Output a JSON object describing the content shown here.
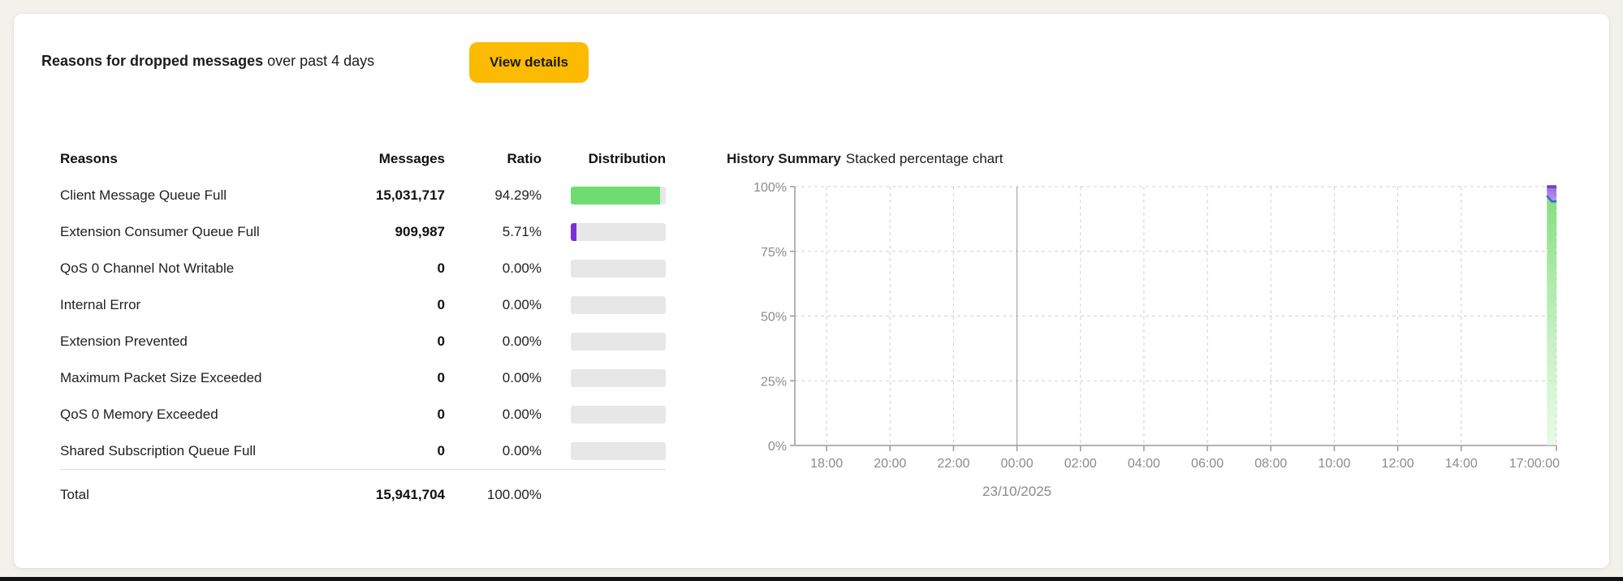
{
  "card": {
    "title_bold": "Reasons for dropped messages",
    "title_rest": " over past 4 days",
    "button_label": "View details",
    "button_color": "#fcba00"
  },
  "table": {
    "headers": {
      "reasons": "Reasons",
      "messages": "Messages",
      "ratio": "Ratio",
      "distribution": "Distribution"
    },
    "bar_track_color": "#e7e7e7",
    "rows": [
      {
        "reason": "Client Message Queue Full",
        "messages": "15,031,717",
        "ratio": "94.29%",
        "percent": 94.29,
        "bar_color": "#6fdc6f"
      },
      {
        "reason": "Extension Consumer Queue Full",
        "messages": "909,987",
        "ratio": "5.71%",
        "percent": 5.71,
        "bar_color": "#7b2fd9"
      },
      {
        "reason": "QoS 0 Channel Not Writable",
        "messages": "0",
        "ratio": "0.00%",
        "percent": 0,
        "bar_color": null
      },
      {
        "reason": "Internal Error",
        "messages": "0",
        "ratio": "0.00%",
        "percent": 0,
        "bar_color": null
      },
      {
        "reason": "Extension Prevented",
        "messages": "0",
        "ratio": "0.00%",
        "percent": 0,
        "bar_color": null
      },
      {
        "reason": "Maximum Packet Size Exceeded",
        "messages": "0",
        "ratio": "0.00%",
        "percent": 0,
        "bar_color": null
      },
      {
        "reason": "QoS 0 Memory Exceeded",
        "messages": "0",
        "ratio": "0.00%",
        "percent": 0,
        "bar_color": null
      },
      {
        "reason": "Shared Subscription Queue Full",
        "messages": "0",
        "ratio": "0.00%",
        "percent": 0,
        "bar_color": null
      }
    ],
    "total": {
      "label": "Total",
      "messages": "15,941,704",
      "ratio": "100.00%"
    }
  },
  "chart_data": {
    "type": "area",
    "variant": "stacked-percentage",
    "title": "History Summary",
    "subtitle": "Stacked percentage chart",
    "ylim": [
      0,
      100
    ],
    "y_ticks": [
      {
        "label": "0%",
        "percent": 0
      },
      {
        "label": "25%",
        "percent": 25
      },
      {
        "label": "50%",
        "percent": 50
      },
      {
        "label": "75%",
        "percent": 75
      },
      {
        "label": "100%",
        "percent": 100
      }
    ],
    "x_range_hours": [
      0,
      24
    ],
    "x_ticks": [
      {
        "label": "18:00",
        "t": 1
      },
      {
        "label": "20:00",
        "t": 3
      },
      {
        "label": "22:00",
        "t": 5
      },
      {
        "label": "00:00",
        "t": 7
      },
      {
        "label": "02:00",
        "t": 9
      },
      {
        "label": "04:00",
        "t": 11
      },
      {
        "label": "06:00",
        "t": 13
      },
      {
        "label": "08:00",
        "t": 15
      },
      {
        "label": "10:00",
        "t": 17
      },
      {
        "label": "12:00",
        "t": 19
      },
      {
        "label": "14:00",
        "t": 21
      },
      {
        "label": "17:00:00",
        "t": 24,
        "anchor": "end"
      }
    ],
    "day_divider": {
      "t": 7,
      "date_label": "23/10/2025"
    },
    "grid": "dashed",
    "legend": "none",
    "series": [
      {
        "name": "Client Message Queue Full",
        "percent": 94.29,
        "line_color": "#3b66d0",
        "fill_top": "#7edd78",
        "fill_bottom": "#d4f6d0",
        "top_points": [
          [
            23.7,
            96.5
          ],
          [
            23.85,
            94.29
          ],
          [
            24,
            94.29
          ]
        ]
      },
      {
        "name": "Extension Consumer Queue Full",
        "percent": 5.71,
        "line_color": "#6a3ec9",
        "fill_top": "#8f63dc",
        "fill_bottom": "#a98ae2",
        "stack_to": 100
      }
    ],
    "axis_color": "#9a9a9a",
    "gridline_color": "#d0d0d0"
  }
}
